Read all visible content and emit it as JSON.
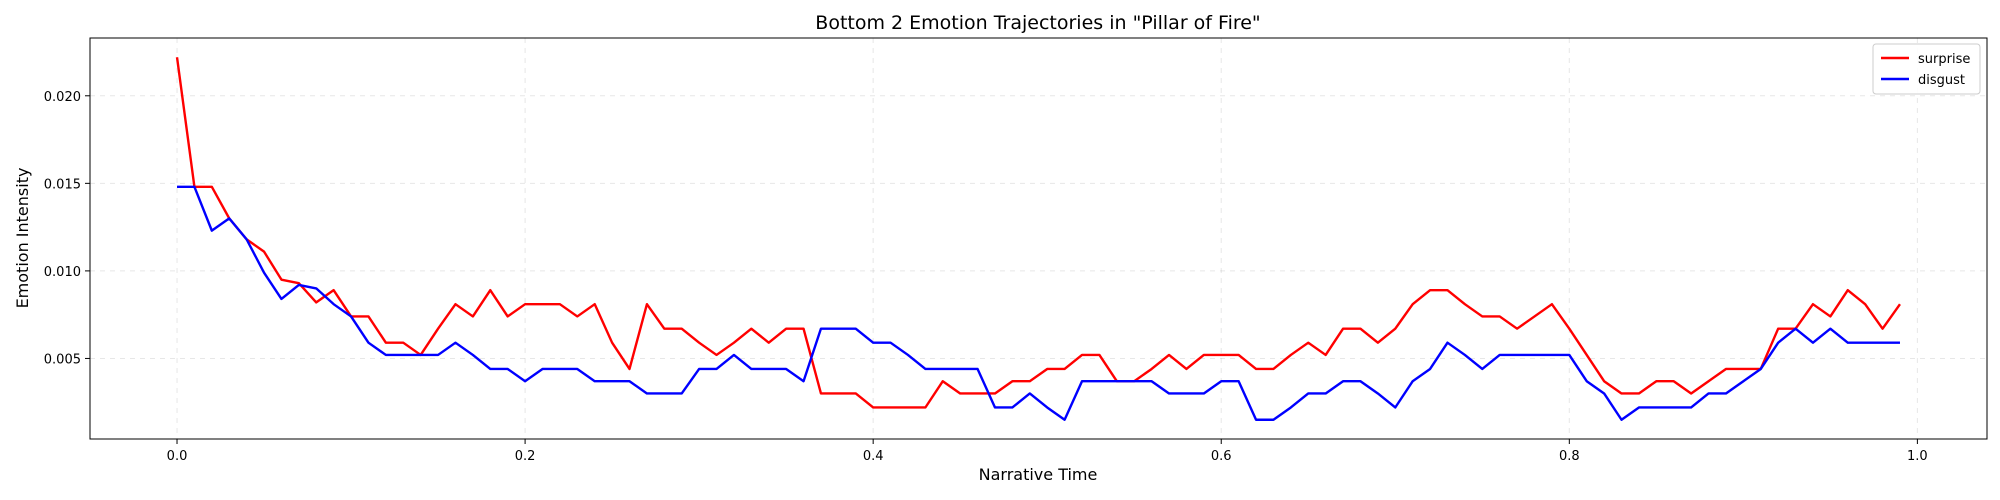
{
  "chart_data": {
    "type": "line",
    "title": "Bottom 2 Emotion Trajectories in \"Pillar of Fire\"",
    "xlabel": "Narrative Time",
    "ylabel": "Emotion Intensity",
    "xlim": [
      -0.05,
      1.04
    ],
    "ylim": [
      0.0004,
      0.0233
    ],
    "xticks": [
      0.0,
      0.2,
      0.4,
      0.6,
      0.8,
      1.0
    ],
    "xtick_labels": [
      "0.0",
      "0.2",
      "0.4",
      "0.6",
      "0.8",
      "1.0"
    ],
    "yticks": [
      0.005,
      0.01,
      0.015,
      0.02
    ],
    "ytick_labels": [
      "0.005",
      "0.010",
      "0.015",
      "0.020"
    ],
    "grid": true,
    "legend_position": "top-right",
    "x_start": 0.0,
    "x_step": 0.01,
    "series": [
      {
        "name": "surprise",
        "color": "#ff0000",
        "values": [
          0.0222,
          0.0148,
          0.0148,
          0.013,
          0.0118,
          0.0111,
          0.0095,
          0.0093,
          0.0082,
          0.0089,
          0.0074,
          0.0074,
          0.0059,
          0.0059,
          0.0052,
          0.0067,
          0.0081,
          0.0074,
          0.0089,
          0.0074,
          0.0081,
          0.0081,
          0.0081,
          0.0074,
          0.0081,
          0.0059,
          0.0044,
          0.0081,
          0.0067,
          0.0067,
          0.0059,
          0.0052,
          0.0059,
          0.0067,
          0.0059,
          0.0067,
          0.0067,
          0.003,
          0.003,
          0.003,
          0.0022,
          0.0022,
          0.0022,
          0.0022,
          0.0037,
          0.003,
          0.003,
          0.003,
          0.0037,
          0.0037,
          0.0044,
          0.0044,
          0.0052,
          0.0052,
          0.0037,
          0.0037,
          0.0044,
          0.0052,
          0.0044,
          0.0052,
          0.0052,
          0.0052,
          0.0044,
          0.0044,
          0.0052,
          0.0059,
          0.0052,
          0.0067,
          0.0067,
          0.0059,
          0.0067,
          0.0081,
          0.0089,
          0.0089,
          0.0081,
          0.0074,
          0.0074,
          0.0067,
          0.0074,
          0.0081,
          0.0067,
          0.0052,
          0.0037,
          0.003,
          0.003,
          0.0037,
          0.0037,
          0.003,
          0.0037,
          0.0044,
          0.0044,
          0.0044,
          0.0067,
          0.0067,
          0.0081,
          0.0074,
          0.0089,
          0.0081,
          0.0067,
          0.0081
        ]
      },
      {
        "name": "disgust",
        "color": "#0000ff",
        "values": [
          0.0148,
          0.0148,
          0.0123,
          0.013,
          0.0118,
          0.0099,
          0.0084,
          0.0092,
          0.009,
          0.0081,
          0.0074,
          0.0059,
          0.0052,
          0.0052,
          0.0052,
          0.0052,
          0.0059,
          0.0052,
          0.0044,
          0.0044,
          0.0037,
          0.0044,
          0.0044,
          0.0044,
          0.0037,
          0.0037,
          0.0037,
          0.003,
          0.003,
          0.003,
          0.0044,
          0.0044,
          0.0052,
          0.0044,
          0.0044,
          0.0044,
          0.0037,
          0.0067,
          0.0067,
          0.0067,
          0.0059,
          0.0059,
          0.0052,
          0.0044,
          0.0044,
          0.0044,
          0.0044,
          0.0022,
          0.0022,
          0.003,
          0.0022,
          0.0015,
          0.0037,
          0.0037,
          0.0037,
          0.0037,
          0.0037,
          0.003,
          0.003,
          0.003,
          0.0037,
          0.0037,
          0.0015,
          0.0015,
          0.0022,
          0.003,
          0.003,
          0.0037,
          0.0037,
          0.003,
          0.0022,
          0.0037,
          0.0044,
          0.0059,
          0.0052,
          0.0044,
          0.0052,
          0.0052,
          0.0052,
          0.0052,
          0.0052,
          0.0037,
          0.003,
          0.0015,
          0.0022,
          0.0022,
          0.0022,
          0.0022,
          0.003,
          0.003,
          0.0037,
          0.0044,
          0.0059,
          0.0067,
          0.0059,
          0.0067,
          0.0059,
          0.0059,
          0.0059,
          0.0059
        ]
      }
    ]
  }
}
